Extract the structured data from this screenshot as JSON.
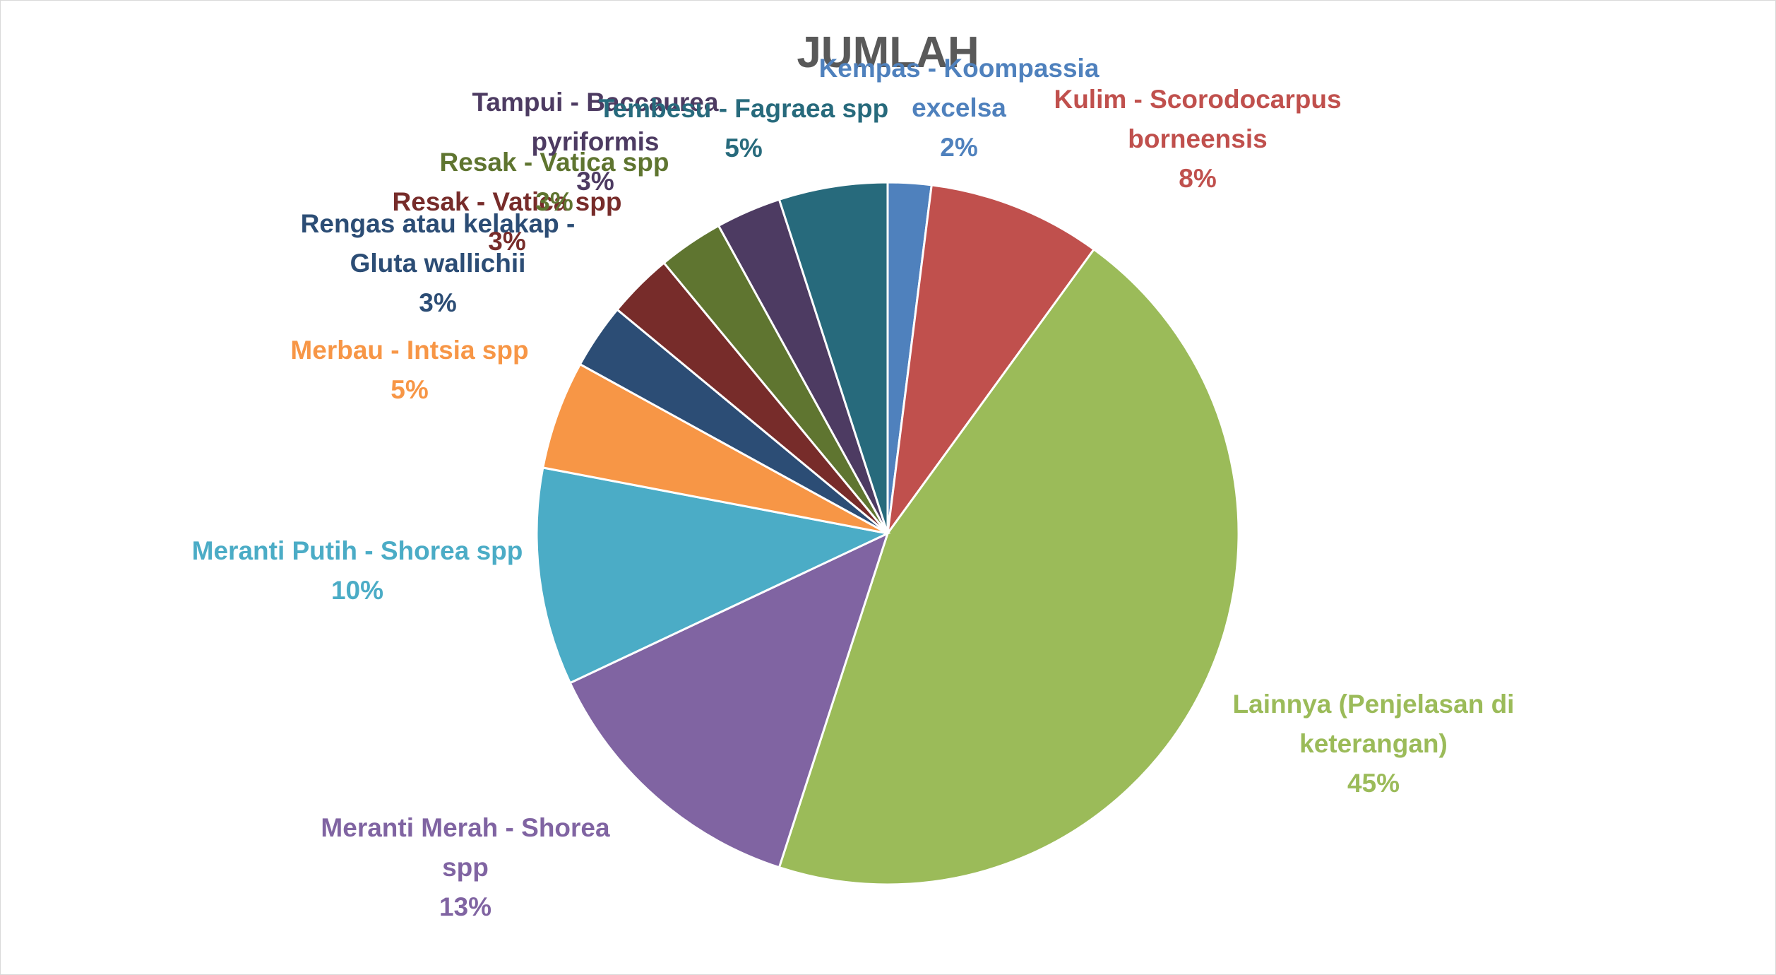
{
  "chart_data": {
    "type": "pie",
    "title": "JUMLAH",
    "categories": [
      "Kempas - Koompassia excelsa",
      "Kulim - Scorodocarpus borneensis",
      "Lainnya (Penjelasan di keterangan)",
      "Meranti Merah - Shorea spp",
      "Meranti Putih - Shorea spp",
      "Merbau - Intsia spp",
      "Rengas atau kelakap - Gluta wallichii",
      "Resak - Vatica spp",
      "Resak - Vatica spp",
      "Tampui - Baccaurea pyriformis",
      "Tembesu - Fagraea spp"
    ],
    "values": [
      2,
      8,
      45,
      13,
      10,
      5,
      3,
      3,
      3,
      3,
      5
    ],
    "value_labels": [
      "2%",
      "8%",
      "45%",
      "13%",
      "10%",
      "5%",
      "3%",
      "3%",
      "3%",
      "3%",
      "5%"
    ],
    "colors": [
      "#4f81bd",
      "#c0504d",
      "#9bbb59",
      "#8064a2",
      "#4bacc6",
      "#f79646",
      "#2c4d75",
      "#772c2a",
      "#5f7530",
      "#4d3b62",
      "#276a7c"
    ]
  }
}
